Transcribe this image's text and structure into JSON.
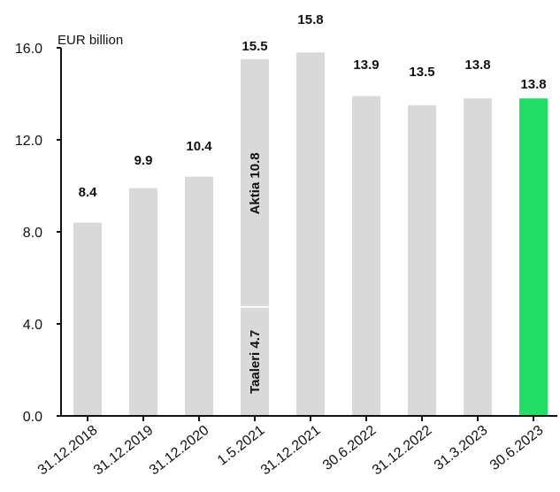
{
  "chart_data": {
    "type": "bar",
    "ylabel": "EUR billion",
    "ylim": [
      0,
      16
    ],
    "yticks": [
      "0.0",
      "4.0",
      "8.0",
      "12.0",
      "16.0"
    ],
    "categories": [
      "31.12.2018",
      "31.12.2019",
      "31.12.2020",
      "1.5.2021",
      "31.12.2021",
      "30.6.2022",
      "31.12.2022",
      "31.3.2023",
      "30.6.2023"
    ],
    "values": [
      8.4,
      9.9,
      10.4,
      15.5,
      15.8,
      13.9,
      13.5,
      13.8,
      13.8
    ],
    "value_labels": [
      "8.4",
      "9.9",
      "10.4",
      "15.5",
      "15.8",
      "13.9",
      "13.5",
      "13.8",
      "13.8"
    ],
    "stacked_bar": {
      "category": "1.5.2021",
      "segments": [
        {
          "label": "Taaleri 4.7",
          "value": 4.7
        },
        {
          "label": "Aktia 10.8",
          "value": 10.8
        }
      ]
    },
    "colors": {
      "default_bar": "#d9d9d9",
      "highlight_bar": "#22dd66",
      "axis": "#111111"
    },
    "highlight_category": "30.6.2023",
    "grid": false,
    "legend": "none"
  }
}
